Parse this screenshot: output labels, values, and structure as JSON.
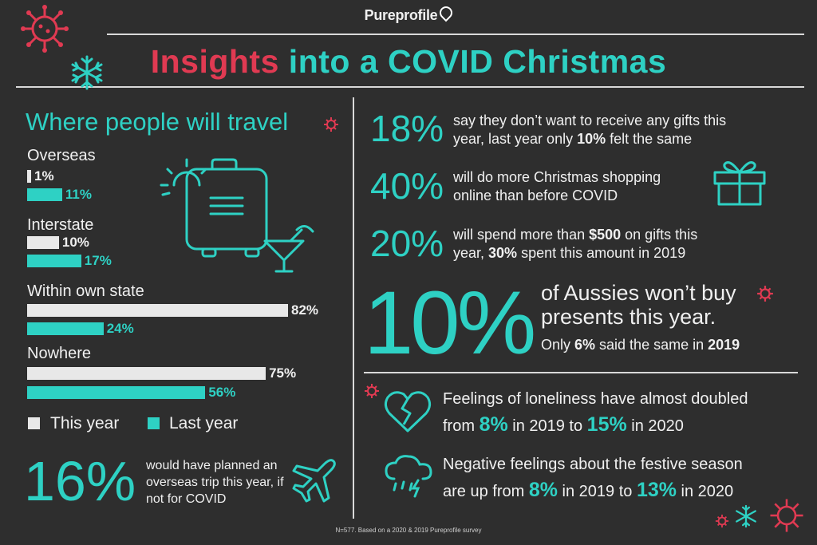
{
  "brand": "Pureprofile",
  "title": {
    "part1": "Insights",
    "part2": "into a COVID Christmas"
  },
  "travel": {
    "heading": "Where people will travel",
    "categories": [
      {
        "label": "Overseas",
        "this_year": 1,
        "last_year": 11,
        "this_year_label": "1%",
        "last_year_label": "11%"
      },
      {
        "label": "Interstate",
        "this_year": 10,
        "last_year": 17,
        "this_year_label": "10%",
        "last_year_label": "17%"
      },
      {
        "label": "Within own state",
        "this_year": 82,
        "last_year": 24,
        "this_year_label": "82%",
        "last_year_label": "24%"
      },
      {
        "label": "Nowhere",
        "this_year": 75,
        "last_year": 56,
        "this_year_label": "75%",
        "last_year_label": "56%"
      }
    ],
    "legend": {
      "this_year": "This year",
      "last_year": "Last year"
    },
    "colors": {
      "this_year": "#e8e8e8",
      "last_year": "#2ed1c4"
    }
  },
  "trip": {
    "pct": "16%",
    "text": "would have planned an overseas trip this year, if not for COVID"
  },
  "stats": {
    "gifts": {
      "pct": "18%",
      "line1": "say they don’t want to receive any gifts this",
      "line2_pre": "year, last year only ",
      "line2_bold": "10%",
      "line2_post": " felt the same"
    },
    "online": {
      "pct": "40%",
      "line1": "will do more Christmas shopping",
      "line2": "online than before COVID"
    },
    "spend": {
      "pct": "20%",
      "line1_pre": "will spend more than ",
      "line1_bold": "$500",
      "line1_post": " on gifts this",
      "line2_pre": "year, ",
      "line2_bold": "30%",
      "line2_post": " spent this amount in 2019"
    },
    "presents": {
      "pct": "10%",
      "line1": "of Aussies won’t buy",
      "line2": "presents this year.",
      "line3_pre": "Only ",
      "line3_bold": "6%",
      "line3_mid": " said the same in ",
      "line3_bold2": "2019"
    }
  },
  "feelings": {
    "loneliness": {
      "line1": "Feelings of loneliness have almost doubled",
      "pre": "from ",
      "v1": "8%",
      "mid": " in 2019 to ",
      "v2": "15%",
      "post": " in 2020"
    },
    "negative": {
      "line1": "Negative feelings about the festive season",
      "pre": "are up from ",
      "v1": "8%",
      "mid": " in 2019 to ",
      "v2": "13%",
      "post": " in 2020"
    }
  },
  "footnote": "N=577. Based on a 2020 & 2019 Pureprofile survey",
  "icons": [
    "virus-icon",
    "snowflake-icon",
    "suitcase-icon",
    "sun-icon",
    "cocktail-icon",
    "gift-icon",
    "plane-icon",
    "broken-heart-icon",
    "rain-cloud-icon"
  ],
  "accent_colors": {
    "teal": "#2ed1c4",
    "red": "#e03a52",
    "background": "#2e2e2e"
  }
}
